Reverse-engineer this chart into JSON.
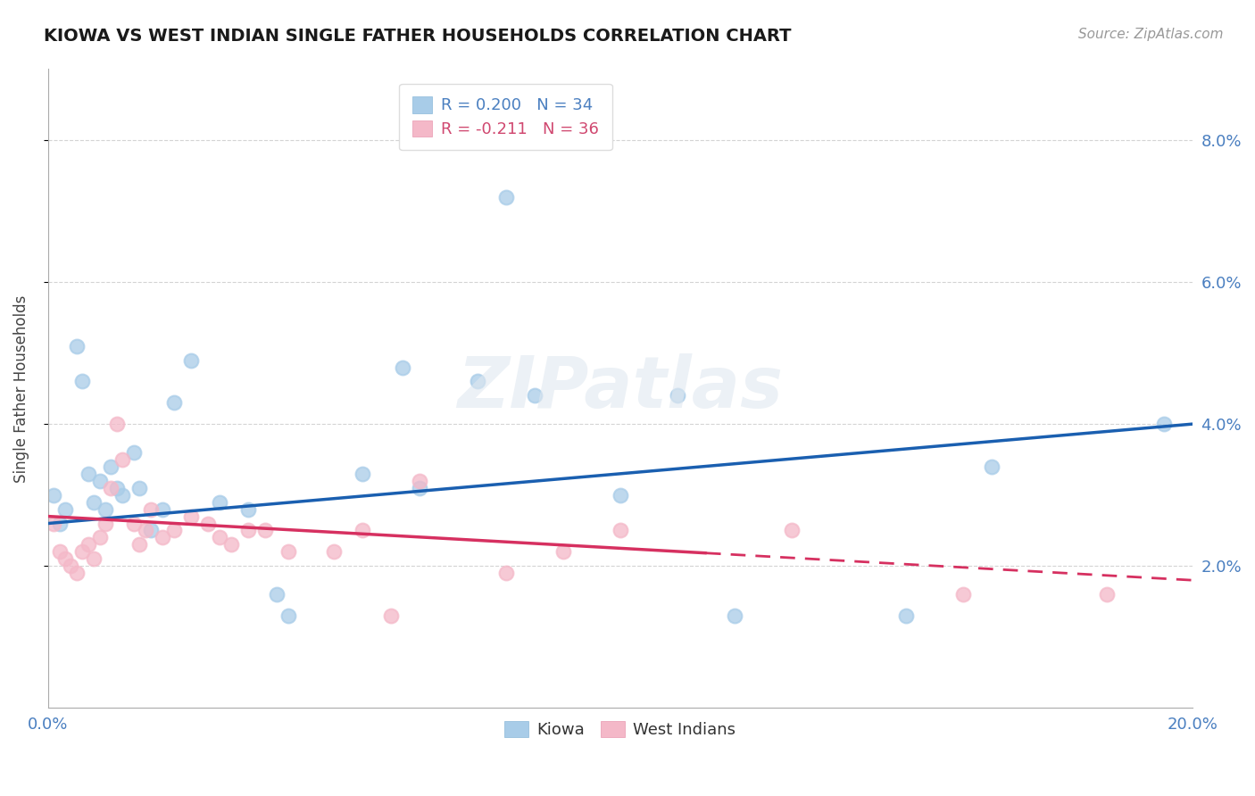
{
  "title": "KIOWA VS WEST INDIAN SINGLE FATHER HOUSEHOLDS CORRELATION CHART",
  "source": "Source: ZipAtlas.com",
  "ylabel": "Single Father Households",
  "xlim": [
    0.0,
    0.2
  ],
  "ylim": [
    0.0,
    0.09
  ],
  "yticks": [
    0.02,
    0.04,
    0.06,
    0.08
  ],
  "ytick_labels": [
    "2.0%",
    "4.0%",
    "6.0%",
    "8.0%"
  ],
  "kiowa_R": 0.2,
  "kiowa_N": 34,
  "wi_R": -0.211,
  "wi_N": 36,
  "kiowa_color": "#a8cce8",
  "wi_color": "#f4b8c8",
  "kiowa_line_color": "#1a5fb0",
  "wi_line_color": "#d63060",
  "background_color": "#ffffff",
  "grid_color": "#d0d0d0",
  "kiowa_x": [
    0.001,
    0.002,
    0.003,
    0.005,
    0.006,
    0.007,
    0.008,
    0.009,
    0.01,
    0.011,
    0.012,
    0.013,
    0.015,
    0.016,
    0.018,
    0.02,
    0.022,
    0.025,
    0.03,
    0.035,
    0.04,
    0.042,
    0.055,
    0.062,
    0.065,
    0.075,
    0.08,
    0.085,
    0.1,
    0.11,
    0.12,
    0.15,
    0.165,
    0.195
  ],
  "kiowa_y": [
    0.03,
    0.026,
    0.028,
    0.051,
    0.046,
    0.033,
    0.029,
    0.032,
    0.028,
    0.034,
    0.031,
    0.03,
    0.036,
    0.031,
    0.025,
    0.028,
    0.043,
    0.049,
    0.029,
    0.028,
    0.016,
    0.013,
    0.033,
    0.048,
    0.031,
    0.046,
    0.072,
    0.044,
    0.03,
    0.044,
    0.013,
    0.013,
    0.034,
    0.04
  ],
  "wi_x": [
    0.001,
    0.002,
    0.003,
    0.004,
    0.005,
    0.006,
    0.007,
    0.008,
    0.009,
    0.01,
    0.011,
    0.012,
    0.013,
    0.015,
    0.016,
    0.017,
    0.018,
    0.02,
    0.022,
    0.025,
    0.028,
    0.03,
    0.032,
    0.035,
    0.038,
    0.042,
    0.05,
    0.055,
    0.06,
    0.065,
    0.08,
    0.09,
    0.1,
    0.13,
    0.16,
    0.185
  ],
  "wi_y": [
    0.026,
    0.022,
    0.021,
    0.02,
    0.019,
    0.022,
    0.023,
    0.021,
    0.024,
    0.026,
    0.031,
    0.04,
    0.035,
    0.026,
    0.023,
    0.025,
    0.028,
    0.024,
    0.025,
    0.027,
    0.026,
    0.024,
    0.023,
    0.025,
    0.025,
    0.022,
    0.022,
    0.025,
    0.013,
    0.032,
    0.019,
    0.022,
    0.025,
    0.025,
    0.016,
    0.016
  ]
}
